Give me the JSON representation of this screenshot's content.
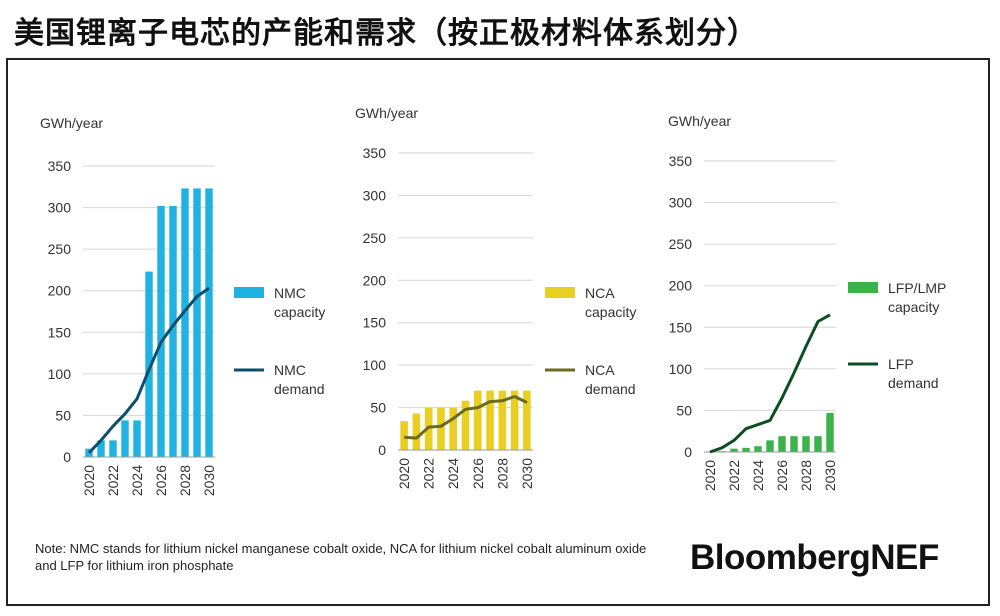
{
  "title": "美国锂离子电芯的产能和需求（按正极材料体系划分）",
  "note_text": "Note: NMC stands for lithium nickel manganese cobalt oxide, NCA for lithium nickel cobalt aluminum oxide and LFP for lithium iron phosphate",
  "brand": "BloombergNEF",
  "chart_data": [
    {
      "type": "bar",
      "unit_label": "GWh/year",
      "categories": [
        "2020",
        "2021",
        "2022",
        "2023",
        "2024",
        "2025",
        "2026",
        "2027",
        "2028",
        "2029",
        "2030"
      ],
      "x_tick_labels": [
        "2020",
        "2022",
        "2024",
        "2026",
        "2028",
        "2030"
      ],
      "ylim": [
        0,
        350
      ],
      "yticks": [
        0,
        50,
        100,
        150,
        200,
        250,
        300,
        350
      ],
      "grid": true,
      "legend_placement": "right",
      "series": [
        {
          "name": "NMC capacity",
          "legend_lines": [
            "NMC",
            "capacity"
          ],
          "kind": "bar",
          "color": "#1fb2e2",
          "values": [
            10,
            20,
            20,
            44,
            44,
            223,
            302,
            302,
            323,
            323,
            323
          ]
        },
        {
          "name": "NMC demand",
          "legend_lines": [
            "NMC",
            "demand"
          ],
          "kind": "line",
          "color": "#0b4f6c",
          "values": [
            5,
            20,
            37,
            52,
            70,
            105,
            138,
            158,
            176,
            193,
            203
          ]
        }
      ]
    },
    {
      "type": "bar",
      "unit_label": "GWh/year",
      "categories": [
        "2020",
        "2021",
        "2022",
        "2023",
        "2024",
        "2025",
        "2026",
        "2027",
        "2028",
        "2029",
        "2030"
      ],
      "x_tick_labels": [
        "2020",
        "2022",
        "2024",
        "2026",
        "2028",
        "2030"
      ],
      "ylim": [
        0,
        350
      ],
      "yticks": [
        0,
        50,
        100,
        150,
        200,
        250,
        300,
        350
      ],
      "grid": true,
      "legend_placement": "right",
      "series": [
        {
          "name": "NCA capacity",
          "legend_lines": [
            "NCA",
            "capacity"
          ],
          "kind": "bar",
          "color": "#e8cf22",
          "values": [
            34,
            43,
            50,
            50,
            50,
            58,
            70,
            70,
            70,
            70,
            70
          ]
        },
        {
          "name": "NCA demand",
          "legend_lines": [
            "NCA",
            "demand"
          ],
          "kind": "line",
          "color": "#6b6a1d",
          "values": [
            15,
            14,
            27,
            28,
            37,
            48,
            50,
            57,
            58,
            63,
            56
          ]
        }
      ]
    },
    {
      "type": "bar",
      "unit_label": "GWh/year",
      "categories": [
        "2020",
        "2021",
        "2022",
        "2023",
        "2024",
        "2025",
        "2026",
        "2027",
        "2028",
        "2029",
        "2030"
      ],
      "x_tick_labels": [
        "2020",
        "2022",
        "2024",
        "2026",
        "2028",
        "2030"
      ],
      "ylim": [
        0,
        350
      ],
      "yticks": [
        0,
        50,
        100,
        150,
        200,
        250,
        300,
        350
      ],
      "grid": true,
      "legend_placement": "right",
      "series": [
        {
          "name": "LFP/LMP capacity",
          "legend_lines": [
            "LFP/LMP",
            "capacity"
          ],
          "kind": "bar",
          "color": "#3bb24a",
          "values": [
            0,
            1,
            4,
            5,
            7,
            14,
            19,
            19,
            19,
            19,
            47
          ]
        },
        {
          "name": "LFP demand",
          "legend_lines": [
            "LFP",
            "demand"
          ],
          "kind": "line",
          "color": "#0d4d26",
          "values": [
            0,
            5,
            14,
            28,
            33,
            38,
            65,
            95,
            127,
            157,
            165
          ]
        }
      ]
    }
  ]
}
